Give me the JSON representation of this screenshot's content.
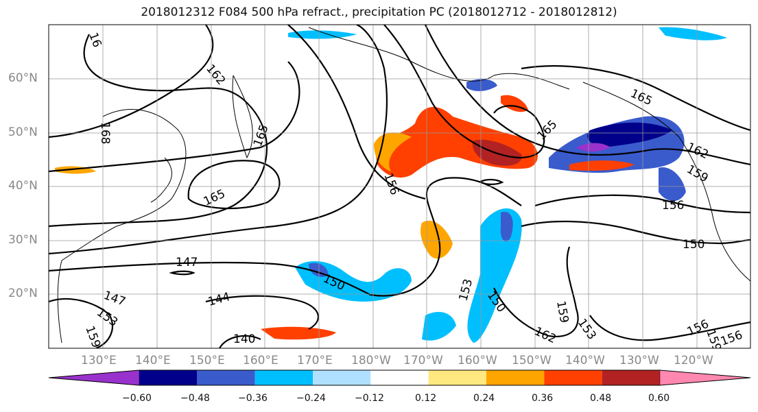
{
  "title": "2018012312 F084 500 hPa refract., precipitation PC (2018012712 - 2018012812)",
  "lat_labels": [
    "60°N",
    "50°N",
    "40°N",
    "30°N",
    "20°N"
  ],
  "lon_labels": [
    "130°E",
    "140°E",
    "150°E",
    "160°E",
    "170°E",
    "180°W",
    "170°W",
    "160°W",
    "150°W",
    "140°W",
    "130°W",
    "120°W"
  ],
  "contour_labels": [
    "162",
    "165",
    "168",
    "165",
    "165",
    "156",
    "165",
    "162",
    "159",
    "156",
    "150",
    "147",
    "150",
    "153",
    "147",
    "153",
    "150",
    "159",
    "144",
    "140",
    "159",
    "162",
    "153",
    "156",
    "159",
    "156",
    "16"
  ],
  "colorbar": {
    "colors": [
      "#9932cc",
      "#00008b",
      "#3a5bcc",
      "#00bfff",
      "#b0e0ff",
      "#ffffff",
      "#ffe880",
      "#ffa500",
      "#ff4000",
      "#b22222",
      "#ff88b0"
    ],
    "ticks": [
      "−0.60",
      "−0.48",
      "−0.36",
      "−0.24",
      "−0.12",
      "0.12",
      "0.24",
      "0.36",
      "0.48",
      "0.60"
    ]
  }
}
